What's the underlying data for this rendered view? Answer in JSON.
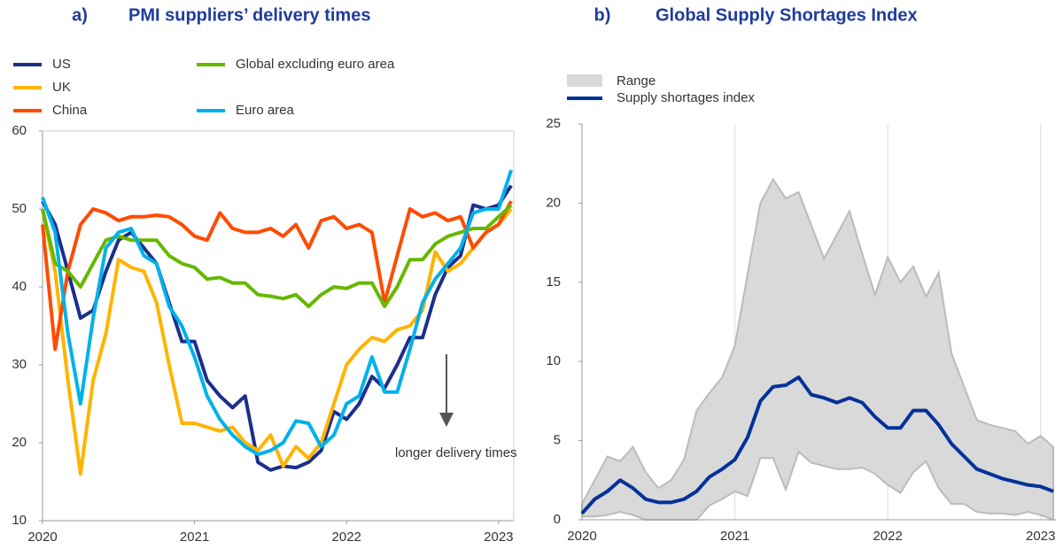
{
  "chart_data": [
    {
      "type": "line",
      "panel": "a)",
      "title": "PMI suppliers’ delivery times",
      "x": [
        2020,
        2020.083,
        2020.167,
        2020.25,
        2020.333,
        2020.417,
        2020.5,
        2020.583,
        2020.667,
        2020.75,
        2020.833,
        2020.917,
        2021,
        2021.083,
        2021.167,
        2021.25,
        2021.333,
        2021.417,
        2021.5,
        2021.583,
        2021.667,
        2021.75,
        2021.833,
        2021.917,
        2022,
        2022.083,
        2022.167,
        2022.25,
        2022.333,
        2022.417,
        2022.5,
        2022.583,
        2022.667,
        2022.75,
        2022.833,
        2022.917,
        2023,
        2023.083
      ],
      "series": [
        {
          "name": "US",
          "color": "#1b2f8c",
          "values": [
            51,
            48,
            42,
            36,
            37,
            42,
            46,
            47,
            45,
            43,
            38,
            33,
            33,
            28,
            26,
            24.5,
            26,
            17.5,
            16.5,
            17,
            16.8,
            17.5,
            19,
            24,
            23,
            25,
            28.5,
            27,
            30,
            33.5,
            33.5,
            39,
            42.5,
            44,
            50.5,
            50,
            50.5,
            53
          ]
        },
        {
          "name": "UK",
          "color": "#ffb400",
          "values": [
            50,
            42,
            28,
            16,
            28,
            34,
            43.5,
            42.5,
            42,
            38,
            30,
            22.5,
            22.5,
            22,
            21.5,
            22,
            20,
            19,
            21,
            17,
            19.5,
            18,
            20,
            25,
            30,
            32,
            33.5,
            33,
            34.5,
            35,
            37,
            44.5,
            42,
            43,
            45,
            47,
            48,
            50
          ]
        },
        {
          "name": "China",
          "color": "#ff4b00",
          "values": [
            48,
            32,
            42,
            48,
            50,
            49.5,
            48.5,
            49,
            49,
            49.2,
            49,
            48,
            46.5,
            46,
            49.5,
            47.5,
            47,
            47,
            47.5,
            46.5,
            48,
            45,
            48.5,
            49,
            47.5,
            48,
            47,
            38,
            44,
            50,
            49,
            49.5,
            48.5,
            49,
            45,
            47,
            48,
            51
          ]
        },
        {
          "name": "Global excluding euro area",
          "color": "#65b800",
          "values": [
            50,
            43,
            42,
            40,
            43,
            46,
            46.5,
            46,
            46,
            46,
            44,
            43,
            42.5,
            41,
            41.2,
            40.5,
            40.5,
            39,
            38.8,
            38.5,
            39,
            37.5,
            39,
            40,
            39.8,
            40.5,
            40.5,
            37.5,
            40,
            43.5,
            43.5,
            45.5,
            46.5,
            47,
            47.5,
            47.5,
            49,
            50.5
          ]
        },
        {
          "name": "Euro area",
          "color": "#00b1ea",
          "values": [
            51.5,
            47,
            34,
            25,
            36,
            45,
            47,
            47.5,
            44,
            43,
            37.5,
            35,
            31,
            26,
            23,
            21,
            19.5,
            18.5,
            19,
            20,
            22.8,
            22.5,
            19.5,
            21,
            25,
            26,
            31,
            26.5,
            26.5,
            32,
            38,
            41,
            43,
            45,
            49.5,
            50,
            50,
            55
          ]
        }
      ],
      "xlim": [
        2020,
        2023.1
      ],
      "xticks": [
        2020,
        2021,
        2022,
        2023
      ],
      "ylim": [
        10,
        60
      ],
      "yticks": [
        10,
        20,
        30,
        40,
        50,
        60
      ],
      "grid": false,
      "annotation": "longer delivery times"
    },
    {
      "type": "line",
      "panel": "b)",
      "title": "Global Supply Shortages Index",
      "x": [
        2020,
        2020.083,
        2020.167,
        2020.25,
        2020.333,
        2020.417,
        2020.5,
        2020.583,
        2020.667,
        2020.75,
        2020.833,
        2020.917,
        2021,
        2021.083,
        2021.167,
        2021.25,
        2021.333,
        2021.417,
        2021.5,
        2021.583,
        2021.667,
        2021.75,
        2021.833,
        2021.917,
        2022,
        2022.083,
        2022.167,
        2022.25,
        2022.333,
        2022.417,
        2022.5,
        2022.583,
        2022.667,
        2022.75,
        2022.833,
        2022.917,
        2023,
        2023.083
      ],
      "series": [
        {
          "name": "Range",
          "color": "#d9d9d9",
          "type": "range",
          "lower": [
            0.2,
            0.2,
            0.3,
            0.5,
            0.3,
            0,
            0,
            0,
            0,
            0,
            0.9,
            1.3,
            1.8,
            1.5,
            3.9,
            3.9,
            1.9,
            4.3,
            3.6,
            3.4,
            3.2,
            3.2,
            3.3,
            2.9,
            2.2,
            1.7,
            3,
            3.7,
            2,
            1,
            1,
            0.5,
            0.4,
            0.4,
            0.3,
            0.5,
            0.3,
            0
          ],
          "upper": [
            1,
            2.5,
            4,
            3.7,
            4.6,
            3,
            2,
            2.5,
            3.8,
            6.9,
            8,
            9,
            11,
            15.5,
            20,
            21.5,
            20.3,
            20.7,
            18.6,
            16.5,
            18,
            19.5,
            16.8,
            14.2,
            16.6,
            15,
            16,
            14.1,
            15.6,
            10.5,
            8.4,
            6.3,
            6,
            5.8,
            5.6,
            4.8,
            5.3,
            4.6
          ]
        },
        {
          "name": "Supply shortages index",
          "color": "#003299",
          "values": [
            0.4,
            1.3,
            1.8,
            2.5,
            2,
            1.3,
            1.1,
            1.1,
            1.3,
            1.8,
            2.7,
            3.2,
            3.8,
            5.2,
            7.5,
            8.4,
            8.5,
            9,
            7.9,
            7.7,
            7.4,
            7.7,
            7.4,
            6.5,
            5.8,
            5.8,
            6.9,
            6.9,
            6,
            4.8,
            4,
            3.2,
            2.9,
            2.6,
            2.4,
            2.2,
            2.1,
            1.8
          ]
        }
      ],
      "xlim": [
        2020,
        2023.1
      ],
      "xticks": [
        2020,
        2021,
        2022,
        2023
      ],
      "ylim": [
        0,
        25
      ],
      "yticks": [
        0,
        5,
        10,
        15,
        20,
        25
      ],
      "grid": "x"
    }
  ]
}
